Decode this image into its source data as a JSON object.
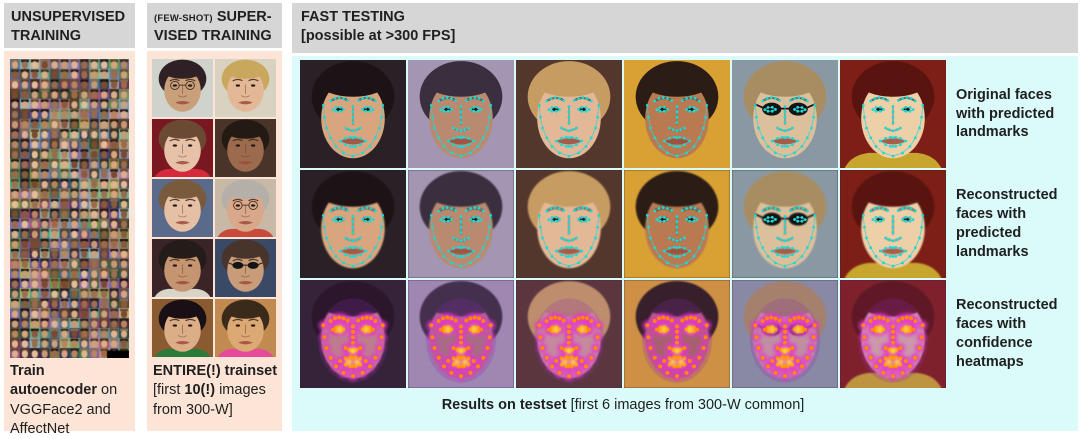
{
  "colors": {
    "panel_pink": "#fce4d6",
    "header_gray": "#d6d6d6",
    "panel_cyan": "#dbfbfb",
    "landmark_cyan": "#1fd7d4",
    "heat_glow": "#e536cc",
    "heat_hot": "#ff8a00",
    "heat_peak": "#ffdf3a",
    "heat_veil": "#8a2fae",
    "text": "#1f1f1f"
  },
  "unsupervised_panel": {
    "title": "UNSUPERVISED TRAINING",
    "mosaic_name": "face-mosaic-unlabeled-training-set",
    "caption_bold": "Train autoencoder",
    "caption_rest": " on VGGFace2 and AffectNet"
  },
  "supervised_panel": {
    "title_prefix": "(FEW-SHOT)",
    "title_main": " SUPER-VISED TRAINING",
    "caption_bold": "ENTIRE(!) trainset",
    "caption_mid": " [first ",
    "caption_bold2": "10(!)",
    "caption_rest": " images from 300-W]",
    "train_faces": [
      {
        "bg": "#cfd3cc",
        "skin": "#c9a07a",
        "hair": "#2e2024",
        "feature": "glasses"
      },
      {
        "bg": "#d8d2c0",
        "skin": "#e3b896",
        "hair": "#c9a85e",
        "feature": null
      },
      {
        "bg": "#7a1822",
        "skin": "#e8c2a8",
        "hair": "#6b4a34",
        "shirt": "#d42a3c",
        "feature": null
      },
      {
        "bg": "#4a3328",
        "skin": "#9c6b4e",
        "hair": "#241a14",
        "feature": null
      },
      {
        "bg": "#5a6a8a",
        "skin": "#e6c0a4",
        "hair": "#7a5a3c",
        "feature": null
      },
      {
        "bg": "#c7b9a5",
        "skin": "#d9a88a",
        "hair": "#b5afa9",
        "shirt": "#c84a3a",
        "feature": "glasses"
      },
      {
        "bg": "#3a2428",
        "skin": "#c59470",
        "hair": "#241c18",
        "shirt": "#d8d4c8",
        "feature": null
      },
      {
        "bg": "#3a4a66",
        "skin": "#c89b79",
        "hair": "#48342a",
        "feature": "sunglasses"
      },
      {
        "bg": "#8a5a30",
        "skin": "#dcae88",
        "hair": "#181014",
        "shirt": "#2a7a3a",
        "feature": null
      },
      {
        "bg": "#c08a50",
        "skin": "#dca873",
        "hair": "#3a2a1a",
        "shirt": "#e84a9a",
        "feature": null
      }
    ]
  },
  "testing_panel": {
    "title": "FAST TESTING",
    "subtitle": "[possible at >300 FPS]",
    "row_labels": [
      "Original faces with predicted landmarks",
      "Reconstructed faces with predicted landmarks",
      "Reconstructed faces with confidence heatmaps"
    ],
    "rows": [
      {
        "overlay": "landmarks",
        "reconstructed": false
      },
      {
        "overlay": "landmarks",
        "reconstructed": true
      },
      {
        "overlay": "heatmap",
        "reconstructed": true
      }
    ],
    "caption_bold": "Results on testset",
    "caption_rest": " [first 6 images from 300-W common]",
    "test_faces": [
      {
        "bg": "#2a2126",
        "skin": "#d9a57e",
        "hair": "#1d1216",
        "feature": null
      },
      {
        "bg": "#a495b3",
        "skin": "#b98a70",
        "hair": "#3a2f3e",
        "feature": null
      },
      {
        "bg": "#54372c",
        "skin": "#e3b897",
        "hair": "#c79c62",
        "feature": null
      },
      {
        "bg": "#d9a033",
        "skin": "#b97a52",
        "hair": "#2b1c16",
        "feature": null
      },
      {
        "bg": "#8a98a3",
        "skin": "#dcc09c",
        "hair": "#a98d62",
        "feature": "sunglasses"
      },
      {
        "bg": "#7e1f17",
        "skin": "#edcfa8",
        "hair": "#5a1410",
        "shirt": "#c8a52e",
        "feature": null
      }
    ]
  }
}
